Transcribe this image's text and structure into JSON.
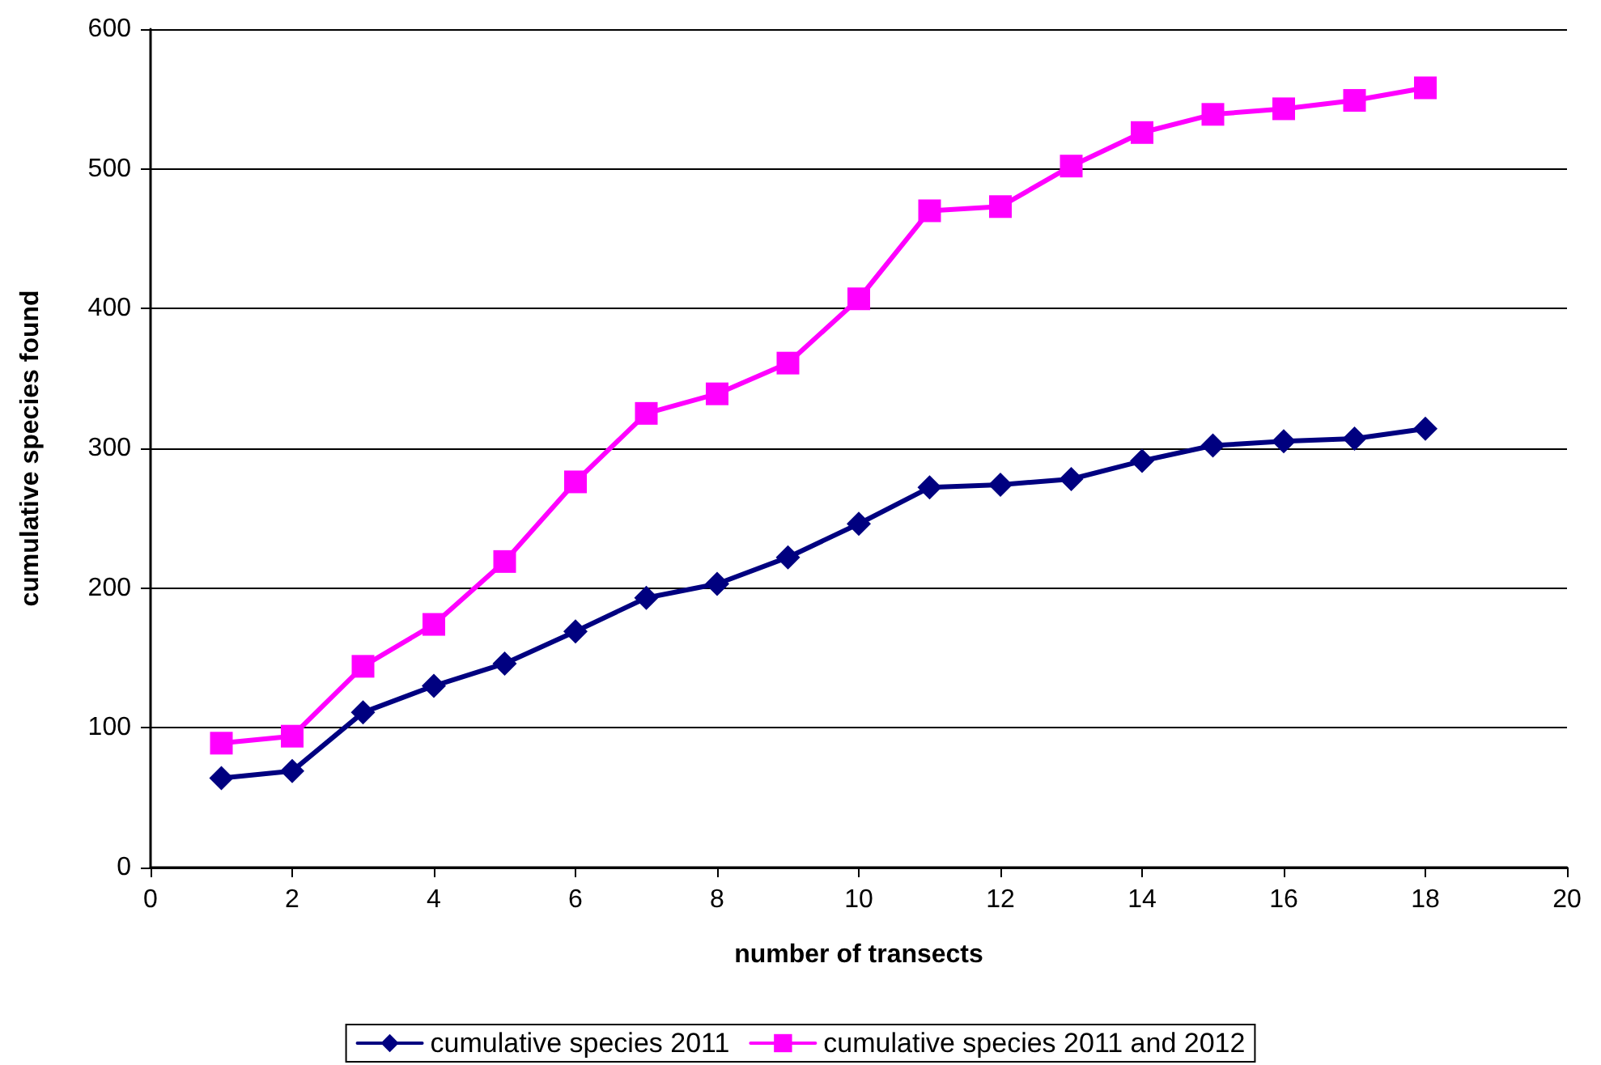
{
  "chart_data": {
    "type": "line",
    "xlabel": "number of transects",
    "ylabel": "cumulative species found",
    "x": [
      1,
      2,
      3,
      4,
      5,
      6,
      7,
      8,
      9,
      10,
      11,
      12,
      13,
      14,
      15,
      16,
      17,
      18
    ],
    "series": [
      {
        "name": "cumulative species 2011",
        "color": "#000080",
        "marker": "diamond",
        "values": [
          64,
          69,
          111,
          130,
          146,
          169,
          193,
          203,
          222,
          246,
          272,
          274,
          278,
          291,
          302,
          305,
          307,
          314
        ]
      },
      {
        "name": "cumulative species 2011 and 2012",
        "color": "#ff00ff",
        "marker": "square",
        "values": [
          89,
          94,
          144,
          174,
          219,
          276,
          325,
          339,
          361,
          407,
          470,
          473,
          502,
          526,
          539,
          543,
          549,
          558
        ]
      }
    ],
    "xlim": [
      0,
      20
    ],
    "xticks": [
      0,
      2,
      4,
      6,
      8,
      10,
      12,
      14,
      16,
      18,
      20
    ],
    "ylim": [
      0,
      600
    ],
    "yticks": [
      0,
      100,
      200,
      300,
      400,
      500,
      600
    ],
    "grid": "y",
    "legend": "bottom",
    "line_style": "solid"
  }
}
